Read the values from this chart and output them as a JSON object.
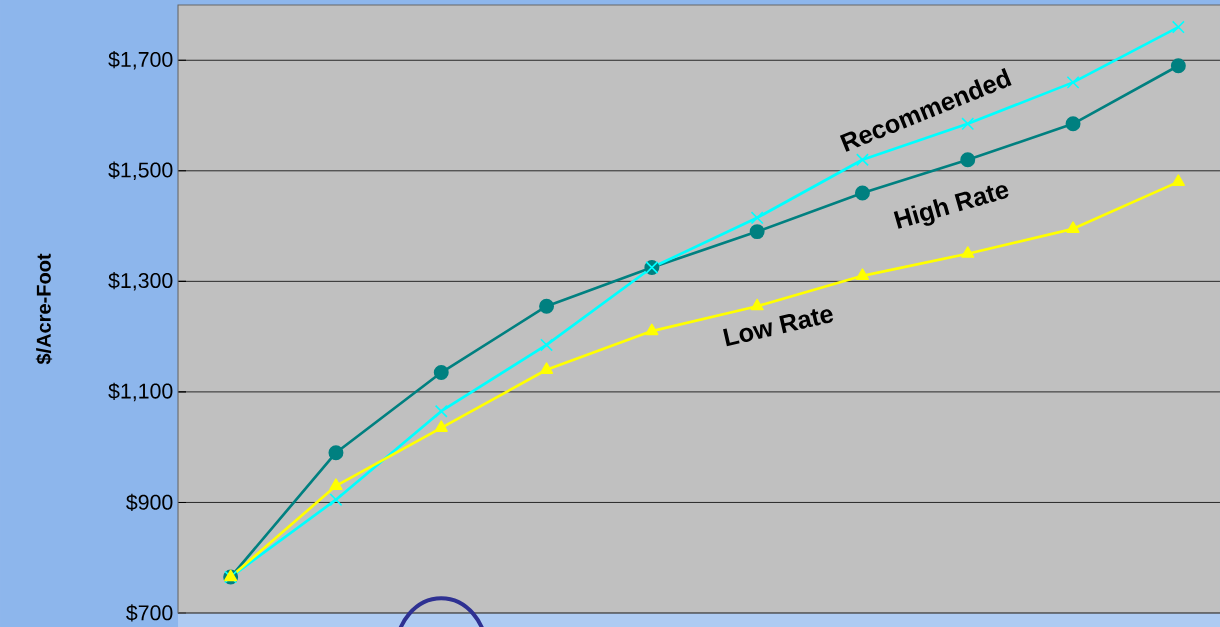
{
  "chart_data": {
    "type": "line",
    "ylabel": "$/Acre-Foot",
    "categories": [
      null,
      null,
      null,
      null,
      null,
      null,
      null,
      null,
      null,
      null
    ],
    "series": [
      {
        "name": "High Rate",
        "color": "#008080",
        "marker": "circle",
        "values": [
          765,
          990,
          1135,
          1255,
          1325,
          1390,
          1460,
          1520,
          1585,
          1690
        ]
      },
      {
        "name": "Recommended",
        "color": "#00ffff",
        "marker": "cross",
        "values": [
          765,
          905,
          1065,
          1185,
          1325,
          1415,
          1520,
          1585,
          1660,
          1760
        ]
      },
      {
        "name": "Low Rate",
        "color": "#ffff00",
        "marker": "triangle",
        "values": [
          765,
          930,
          1035,
          1140,
          1210,
          1255,
          1310,
          1350,
          1395,
          1480
        ]
      }
    ],
    "ylim": [
      700,
      1800
    ],
    "yticks": [
      {
        "value": 700,
        "label": "$700"
      },
      {
        "value": 900,
        "label": "$900"
      },
      {
        "value": 1100,
        "label": "$1,100"
      },
      {
        "value": 1300,
        "label": "$1,300"
      },
      {
        "value": 1500,
        "label": "$1,500"
      },
      {
        "value": 1700,
        "label": "$1,700"
      }
    ],
    "grid": "y",
    "tick_labels": "y",
    "line_style": "solid"
  }
}
